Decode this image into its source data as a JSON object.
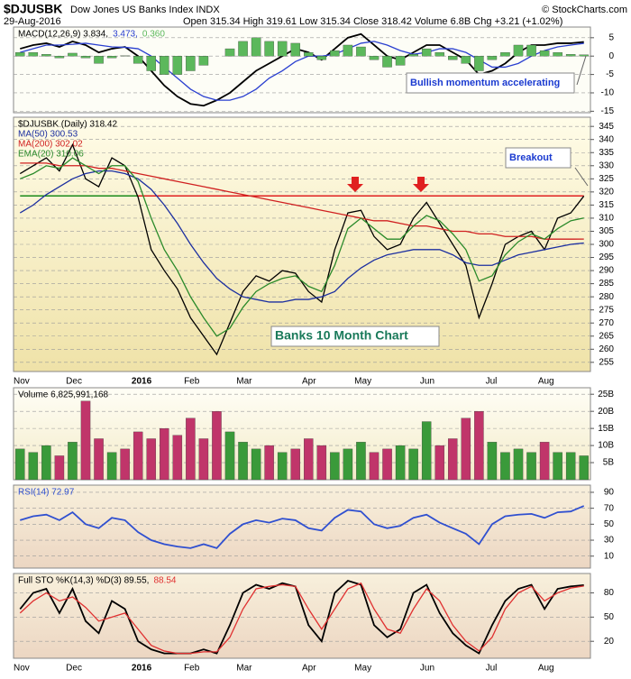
{
  "header": {
    "symbol": "$DJUSBK",
    "name": "Dow Jones US Banks Index INDX",
    "date": "29-Aug-2016",
    "quote": "Open 315.34 High 319.61 Low 315.34 Close 318.42 Volume 6.8B Chg +3.21 (+1.02%)",
    "credit": "© StockCharts.com"
  },
  "chart_data": [
    {
      "type": "line",
      "ylim": [
        -15.4,
        7.9
      ],
      "yticks": [
        5,
        0,
        -5,
        -10,
        -15
      ],
      "grid": true,
      "annotations": [
        "Bullish momentum accelerating"
      ],
      "series": [
        {
          "name": "MACD(12,26,9) 3.834,",
          "color": "#000000",
          "style": "line",
          "values": [
            2,
            3,
            3.5,
            2.5,
            4,
            3,
            1,
            2,
            2.5,
            0,
            -4,
            -8,
            -11,
            -13,
            -13.5,
            -12,
            -10,
            -7,
            -4,
            -2,
            0,
            2,
            1,
            -1,
            2,
            5,
            6,
            3,
            0,
            -1,
            1,
            3,
            3,
            1,
            -1,
            -5,
            -4,
            -2,
            1,
            3,
            3,
            3.5,
            3.5,
            3.834
          ]
        },
        {
          "name": "3.473,",
          "color": "#2a3fd0",
          "style": "line",
          "values": [
            1,
            2,
            3,
            3,
            3.2,
            3.5,
            3,
            2.5,
            2.4,
            2,
            0,
            -3,
            -6,
            -9,
            -11,
            -12,
            -12,
            -11,
            -9,
            -6,
            -4,
            -1.5,
            0,
            0,
            0.5,
            2,
            3.5,
            4,
            3,
            1.5,
            0.5,
            1,
            2,
            2,
            1,
            -1,
            -3,
            -3,
            -2,
            0,
            1.5,
            2.5,
            3,
            3.473
          ]
        },
        {
          "name": "0.360",
          "color": "#5cb85c",
          "style": "bar",
          "values": [
            1,
            1,
            0.5,
            -0.5,
            0.8,
            -0.5,
            -2,
            -0.5,
            0.1,
            -2,
            -4,
            -5,
            -5,
            -4,
            -2.5,
            0,
            2,
            4,
            5,
            4,
            4,
            3.5,
            1,
            -1,
            1.5,
            3,
            2.5,
            -1,
            -3,
            -2.5,
            0.5,
            2,
            1,
            -1,
            -2,
            -4,
            -1,
            1,
            3,
            3,
            1.5,
            1,
            0.5,
            0.36
          ]
        }
      ]
    },
    {
      "type": "line",
      "ylim": [
        251.5,
        348.5
      ],
      "yticks": [
        255,
        260,
        265,
        270,
        275,
        280,
        285,
        290,
        295,
        300,
        305,
        310,
        315,
        320,
        325,
        330,
        335,
        340,
        345
      ],
      "grid": true,
      "categories": [
        "Nov",
        null,
        null,
        null,
        "Dec",
        null,
        null,
        null,
        null,
        "2016",
        null,
        null,
        null,
        "Feb",
        null,
        null,
        null,
        "Mar",
        null,
        null,
        null,
        null,
        "Apr",
        null,
        null,
        null,
        "May",
        null,
        null,
        null,
        null,
        "Jun",
        null,
        null,
        null,
        null,
        "Jul",
        null,
        null,
        null,
        "Aug",
        null,
        null,
        null
      ],
      "annotations": [
        "Banks 10 Month Chart",
        "Breakout"
      ],
      "hlines": [
        {
          "value": 318.5,
          "color": "#1a8a1a",
          "from": 0,
          "to": 9
        },
        {
          "value": 318.5,
          "color": "#e02020",
          "from": 9,
          "to": 43
        }
      ],
      "series": [
        {
          "name": "$DJUSBK (Daily) 318.42",
          "color": "#000000",
          "style": "line",
          "values": [
            327,
            330,
            333,
            328,
            338,
            325,
            322,
            333,
            330,
            318,
            298,
            290,
            283,
            272,
            265,
            258,
            270,
            282,
            288,
            286,
            290,
            289,
            282,
            278,
            298,
            312,
            313,
            303,
            298,
            300,
            310,
            316,
            308,
            300,
            292,
            272,
            285,
            300,
            303,
            305,
            298,
            310,
            312,
            318.42
          ]
        },
        {
          "name": "MA(50) 300.53",
          "color": "#1c2fa0",
          "style": "line",
          "values": [
            312,
            315,
            319,
            322,
            325,
            327,
            328,
            328,
            327,
            325,
            321,
            315,
            308,
            300,
            293,
            287,
            283,
            280,
            279,
            278,
            278,
            279,
            279,
            280,
            282,
            287,
            291,
            294,
            296,
            297,
            298,
            298,
            298,
            296,
            293,
            292,
            292,
            294,
            296,
            297,
            298,
            299,
            300,
            300.53
          ]
        },
        {
          "name": "MA(200) 302.02",
          "color": "#d02020",
          "style": "line",
          "values": [
            331,
            331,
            331,
            330,
            330,
            330,
            329,
            329,
            328,
            327,
            326,
            325,
            324,
            323,
            322,
            321,
            320,
            319,
            318,
            317,
            316,
            315,
            314,
            313,
            312,
            311,
            310,
            309,
            309,
            308,
            307,
            307,
            306,
            305,
            305,
            304,
            304,
            303,
            303,
            303,
            302,
            302,
            302,
            302.02
          ]
        },
        {
          "name": "EMA(20) 310.06",
          "color": "#2a8a2a",
          "style": "line",
          "values": [
            325,
            327,
            330,
            329,
            333,
            330,
            327,
            330,
            330,
            324,
            310,
            298,
            290,
            280,
            272,
            265,
            268,
            276,
            282,
            285,
            287,
            288,
            284,
            282,
            292,
            306,
            310,
            306,
            302,
            302,
            307,
            311,
            309,
            304,
            298,
            286,
            288,
            296,
            301,
            304,
            302,
            306,
            309,
            310.06
          ]
        }
      ]
    },
    {
      "type": "bar",
      "ylim": [
        0,
        26.9
      ],
      "yticks": [
        {
          "value": 25,
          "label": "25B"
        },
        {
          "value": 20,
          "label": "20B"
        },
        {
          "value": 15,
          "label": "15B"
        },
        {
          "value": 10,
          "label": "10B"
        },
        {
          "value": 5,
          "label": "5B"
        }
      ],
      "grid": true,
      "series": [
        {
          "name": "Volume 6,825,991,168",
          "color": "#000000",
          "style": "bar",
          "values": [
            9,
            8,
            10,
            7,
            11,
            23,
            12,
            8,
            9,
            14,
            12,
            15,
            13,
            18,
            12,
            20,
            14,
            11,
            9,
            10,
            8,
            9,
            12,
            10,
            8,
            9,
            11,
            8,
            9,
            10,
            9,
            17,
            10,
            12,
            18,
            20,
            11,
            8,
            9,
            8,
            11,
            8,
            8,
            7
          ],
          "colors": [
            "#3a9a3a",
            "#3a9a3a",
            "#3a9a3a",
            "#c0356a",
            "#3a9a3a",
            "#c0356a",
            "#c0356a",
            "#3a9a3a",
            "#c0356a",
            "#c0356a",
            "#c0356a",
            "#c0356a",
            "#c0356a",
            "#c0356a",
            "#c0356a",
            "#c0356a",
            "#3a9a3a",
            "#3a9a3a",
            "#3a9a3a",
            "#c0356a",
            "#3a9a3a",
            "#c0356a",
            "#c0356a",
            "#c0356a",
            "#3a9a3a",
            "#3a9a3a",
            "#3a9a3a",
            "#c0356a",
            "#c0356a",
            "#3a9a3a",
            "#3a9a3a",
            "#3a9a3a",
            "#c0356a",
            "#c0356a",
            "#c0356a",
            "#c0356a",
            "#3a9a3a",
            "#3a9a3a",
            "#3a9a3a",
            "#3a9a3a",
            "#c0356a",
            "#3a9a3a",
            "#3a9a3a",
            "#3a9a3a"
          ]
        }
      ]
    },
    {
      "type": "line",
      "ylim": [
        -5,
        99
      ],
      "yticks": [
        90,
        70,
        50,
        30,
        10
      ],
      "grid": true,
      "series": [
        {
          "name": "RSI(14) 72.97",
          "color": "#3050d0",
          "style": "line",
          "values": [
            55,
            60,
            62,
            55,
            65,
            50,
            45,
            58,
            55,
            40,
            30,
            25,
            22,
            20,
            25,
            20,
            38,
            50,
            55,
            52,
            57,
            55,
            45,
            42,
            58,
            68,
            66,
            50,
            45,
            48,
            58,
            62,
            52,
            45,
            38,
            25,
            50,
            60,
            62,
            63,
            58,
            65,
            66,
            72.97
          ]
        }
      ]
    },
    {
      "type": "line",
      "ylim": [
        -1,
        104
      ],
      "yticks": [
        80,
        50,
        20
      ],
      "grid": true,
      "categories": [
        "Nov",
        null,
        null,
        null,
        "Dec",
        null,
        null,
        null,
        null,
        "2016",
        null,
        null,
        null,
        "Feb",
        null,
        null,
        null,
        "Mar",
        null,
        null,
        null,
        null,
        "Apr",
        null,
        null,
        null,
        "May",
        null,
        null,
        null,
        null,
        "Jun",
        null,
        null,
        null,
        null,
        "Jul",
        null,
        null,
        null,
        "Aug",
        null,
        null,
        null
      ],
      "series": [
        {
          "name": "Full STO %K(14,3) %D(3) 89.55,",
          "color": "#000000",
          "style": "line",
          "values": [
            60,
            80,
            85,
            55,
            85,
            45,
            30,
            70,
            60,
            20,
            10,
            5,
            5,
            5,
            10,
            5,
            40,
            80,
            90,
            85,
            92,
            88,
            40,
            20,
            80,
            95,
            90,
            40,
            25,
            35,
            80,
            90,
            55,
            30,
            15,
            5,
            40,
            70,
            85,
            90,
            60,
            85,
            88,
            89.55
          ]
        },
        {
          "name": "88.54",
          "color": "#e03030",
          "style": "line",
          "values": [
            55,
            70,
            80,
            70,
            75,
            62,
            45,
            50,
            55,
            35,
            15,
            8,
            5,
            5,
            7,
            7,
            25,
            60,
            85,
            88,
            90,
            88,
            60,
            35,
            60,
            85,
            92,
            60,
            35,
            30,
            60,
            85,
            70,
            40,
            20,
            8,
            25,
            60,
            80,
            88,
            70,
            80,
            86,
            88.54
          ]
        }
      ]
    }
  ]
}
